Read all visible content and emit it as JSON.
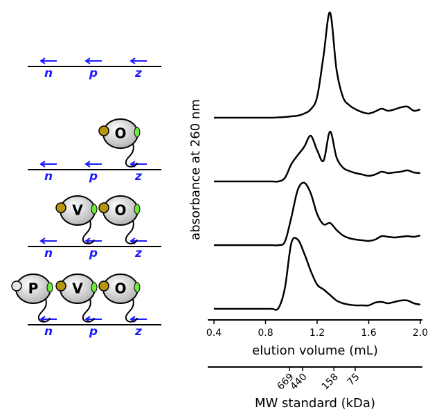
{
  "chart_data": {
    "type": "line",
    "ylabel": "absorbance at 260 nm",
    "xlabel": "elution volume (mL)",
    "xlim": [
      0.4,
      2.0
    ],
    "xticks": [
      {
        "value": 0.4,
        "label": "0.4"
      },
      {
        "value": 0.8,
        "label": "0.8"
      },
      {
        "value": 1.2,
        "label": "1.2"
      },
      {
        "value": 1.6,
        "label": "1.6"
      },
      {
        "value": 2.0,
        "label": "2.0"
      }
    ],
    "x2label": "MW standard (kDa)",
    "x2ticks": [
      {
        "value": 0.985,
        "label": "669"
      },
      {
        "value": 1.087,
        "label": "440"
      },
      {
        "value": 1.33,
        "label": "158"
      },
      {
        "value": 1.495,
        "label": "75"
      }
    ],
    "ylim": [
      0,
      1.6
    ],
    "x": [
      0.4,
      0.45,
      0.5,
      0.55,
      0.6,
      0.65,
      0.7,
      0.75,
      0.8,
      0.85,
      0.9,
      0.95,
      1.0,
      1.05,
      1.1,
      1.15,
      1.2,
      1.25,
      1.3,
      1.35,
      1.4,
      1.45,
      1.5,
      1.55,
      1.6,
      1.65,
      1.7,
      1.75,
      1.8,
      1.85,
      1.9,
      1.95,
      2.0
    ],
    "series": [
      {
        "color": "#000000",
        "values": [
          0,
          0,
          0,
          0,
          0,
          0,
          0,
          0,
          0,
          0,
          0.005,
          0.01,
          0.02,
          0.03,
          0.06,
          0.12,
          0.3,
          0.9,
          1.52,
          0.7,
          0.3,
          0.18,
          0.12,
          0.08,
          0.06,
          0.09,
          0.13,
          0.1,
          0.12,
          0.15,
          0.16,
          0.1,
          0.12
        ]
      },
      {
        "color": "#000000",
        "values": [
          0,
          0,
          0,
          0,
          0,
          0,
          0,
          0,
          0,
          0,
          0,
          0.05,
          0.25,
          0.38,
          0.5,
          0.66,
          0.45,
          0.3,
          0.72,
          0.35,
          0.2,
          0.15,
          0.12,
          0.1,
          0.08,
          0.1,
          0.14,
          0.12,
          0.13,
          0.14,
          0.16,
          0.13,
          0.12
        ]
      },
      {
        "color": "#000000",
        "values": [
          0,
          0,
          0,
          0,
          0,
          0,
          0,
          0,
          0,
          0,
          0,
          0.05,
          0.4,
          0.8,
          0.9,
          0.75,
          0.45,
          0.3,
          0.32,
          0.22,
          0.14,
          0.1,
          0.08,
          0.07,
          0.06,
          0.08,
          0.13,
          0.12,
          0.11,
          0.12,
          0.13,
          0.12,
          0.14
        ]
      },
      {
        "color": "#000000",
        "values": [
          0,
          0,
          0,
          0,
          0,
          0,
          0,
          0,
          0,
          0,
          0.01,
          0.3,
          0.95,
          1.0,
          0.8,
          0.55,
          0.35,
          0.28,
          0.2,
          0.12,
          0.08,
          0.06,
          0.05,
          0.05,
          0.05,
          0.09,
          0.1,
          0.08,
          0.1,
          0.12,
          0.12,
          0.08,
          0.06
        ]
      }
    ]
  },
  "diagram": {
    "rows": [
      {
        "sites": [
          "n",
          "p",
          "z"
        ],
        "proteins": []
      },
      {
        "sites": [
          "n",
          "p",
          "z"
        ],
        "proteins": [
          "O"
        ]
      },
      {
        "sites": [
          "n",
          "p",
          "z"
        ],
        "proteins": [
          "V",
          "O"
        ]
      },
      {
        "sites": [
          "n",
          "p",
          "z"
        ],
        "proteins": [
          "P",
          "V",
          "O"
        ]
      }
    ]
  }
}
